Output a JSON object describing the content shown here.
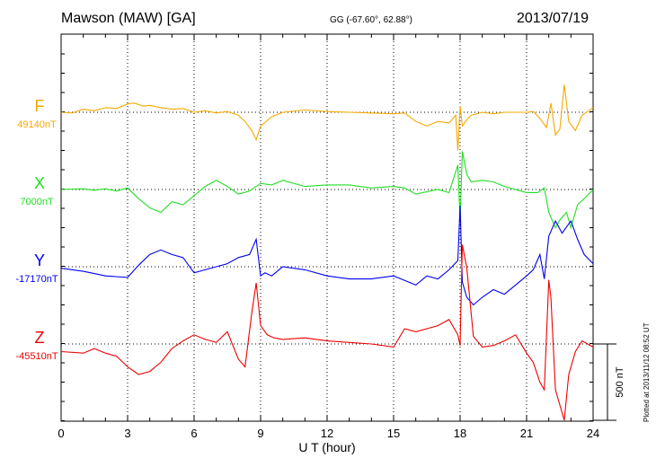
{
  "header": {
    "station": "Mawson (MAW)  [GA]",
    "coords": "GG (-67.60°,  62.88°)",
    "date": "2013/07/19"
  },
  "footer": {
    "plotted": "Plotted at 2013/11/12 08:52 UT"
  },
  "chart_data": {
    "type": "line",
    "title": "Mawson (MAW)  [GA]",
    "xlabel": "U T (hour)",
    "xlim": [
      0,
      24
    ],
    "xticks": [
      0,
      3,
      6,
      9,
      12,
      15,
      18,
      21,
      24
    ],
    "scale_bar_label": "500 nT",
    "scale_bar_nT": 500,
    "grid": true,
    "series": [
      {
        "name": "F",
        "baseline_label": "49140nT",
        "baseline_nT": 49140,
        "color": "#f5a900",
        "x": [
          0,
          0.5,
          1,
          1.5,
          2,
          2.5,
          3,
          3.3,
          3.7,
          4,
          4.5,
          5,
          5.5,
          6,
          6.5,
          7,
          7.5,
          8,
          8.3,
          8.6,
          8.8,
          9,
          9.5,
          10,
          11,
          12,
          13,
          14,
          15,
          15.5,
          16,
          16.5,
          17,
          17.5,
          17.8,
          17.9,
          18,
          18.1,
          18.3,
          18.5,
          19,
          19.5,
          20,
          21,
          21.3,
          21.6,
          21.9,
          22.1,
          22.3,
          22.5,
          22.7,
          22.9,
          23.2,
          23.5,
          24
        ],
        "values": [
          0,
          -5,
          20,
          10,
          30,
          25,
          55,
          60,
          40,
          45,
          30,
          20,
          25,
          0,
          10,
          -5,
          5,
          -20,
          -60,
          -120,
          -180,
          -90,
          -30,
          0,
          15,
          5,
          0,
          -5,
          -10,
          -5,
          -60,
          -90,
          -60,
          -70,
          -20,
          -250,
          40,
          -90,
          -50,
          -20,
          0,
          -10,
          0,
          0,
          5,
          -40,
          -100,
          60,
          -150,
          -110,
          180,
          -60,
          -120,
          -20,
          30
        ]
      },
      {
        "name": "X",
        "baseline_label": "7000nT",
        "baseline_nT": 7000,
        "color": "#22dd22",
        "x": [
          0,
          1,
          1.5,
          2,
          2.5,
          3,
          3.5,
          4,
          4.5,
          5,
          5.5,
          6,
          6.5,
          7,
          7.5,
          8,
          8.5,
          9,
          9.5,
          10,
          11,
          12,
          13,
          14,
          15,
          15.5,
          16,
          17,
          17.5,
          17.9,
          18,
          18.1,
          18.3,
          18.5,
          19,
          19.5,
          20,
          21,
          21.5,
          21.8,
          22,
          22.3,
          22.5,
          22.8,
          23,
          23.3,
          23.6,
          24
        ],
        "values": [
          0,
          5,
          -5,
          5,
          -10,
          10,
          -60,
          -120,
          -150,
          -80,
          -100,
          -40,
          20,
          60,
          20,
          -30,
          -10,
          40,
          30,
          60,
          20,
          30,
          30,
          10,
          20,
          10,
          -30,
          0,
          -20,
          160,
          -200,
          250,
          100,
          50,
          60,
          50,
          20,
          -20,
          -20,
          10,
          -150,
          -250,
          -200,
          -150,
          -250,
          -100,
          -60,
          0
        ]
      },
      {
        "name": "Y",
        "baseline_label": "-17170nT",
        "baseline_nT": -17170,
        "color": "#0000ee",
        "x": [
          0,
          1,
          2,
          3,
          3.5,
          4,
          4.5,
          5,
          5.5,
          6,
          6.5,
          7,
          7.5,
          8,
          8.5,
          8.8,
          9,
          9.2,
          9.5,
          10,
          11,
          12,
          13,
          14,
          15,
          15.5,
          16,
          16.5,
          17,
          17.5,
          17.9,
          18,
          18.1,
          18.3,
          18.6,
          19,
          19.5,
          20,
          20.5,
          21,
          21.3,
          21.6,
          21.8,
          22,
          22.3,
          22.6,
          23,
          23.3,
          23.6,
          24
        ],
        "values": [
          -10,
          -30,
          -60,
          -70,
          10,
          80,
          110,
          80,
          60,
          -40,
          -20,
          0,
          20,
          60,
          80,
          180,
          -60,
          -40,
          -60,
          0,
          -20,
          -60,
          -80,
          -80,
          -60,
          -90,
          -120,
          -60,
          -80,
          -20,
          40,
          400,
          -100,
          -200,
          -250,
          -200,
          -150,
          -180,
          -120,
          -60,
          -20,
          80,
          -80,
          200,
          300,
          220,
          300,
          180,
          80,
          20
        ]
      },
      {
        "name": "Z",
        "baseline_label": "-45510nT",
        "baseline_nT": -45510,
        "color": "#ee0000",
        "x": [
          0,
          1,
          1.5,
          2,
          2.5,
          3,
          3.5,
          4,
          4.5,
          5,
          5.5,
          6,
          6.5,
          7,
          7.5,
          8,
          8.3,
          8.6,
          8.8,
          9,
          9.3,
          9.6,
          10,
          11,
          12,
          13,
          14,
          15,
          15.5,
          16,
          17,
          17.5,
          17.9,
          18,
          18.1,
          18.3,
          18.6,
          19,
          19.5,
          20,
          20.5,
          21,
          21.3,
          21.6,
          21.8,
          22,
          22.1,
          22.3,
          22.5,
          22.7,
          22.9,
          23.2,
          23.5,
          24
        ],
        "values": [
          -50,
          -60,
          -30,
          -60,
          -80,
          -150,
          -200,
          -180,
          -120,
          -30,
          20,
          60,
          30,
          10,
          80,
          -100,
          -150,
          200,
          400,
          120,
          60,
          40,
          30,
          40,
          20,
          10,
          0,
          -20,
          100,
          80,
          120,
          160,
          60,
          -10,
          650,
          500,
          50,
          -20,
          -10,
          20,
          60,
          -60,
          -120,
          -250,
          -300,
          420,
          300,
          -300,
          -400,
          -600,
          -200,
          -50,
          20,
          -20
        ]
      }
    ]
  }
}
